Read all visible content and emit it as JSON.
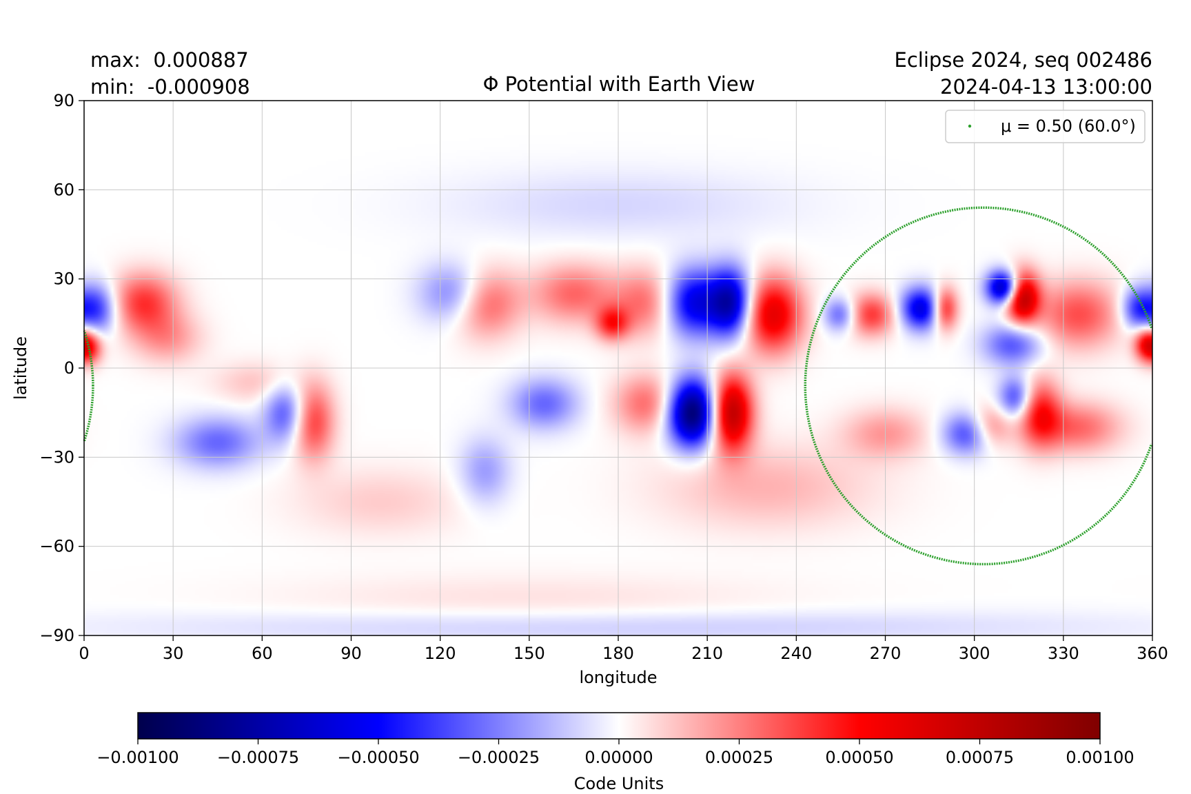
{
  "header": {
    "max_label": "max:  0.000887",
    "min_label": "min:  -0.000908",
    "run_label": "Eclipse 2024, seq 002486",
    "time_label": "2024-04-13 13:00:00"
  },
  "colors": {
    "grid": "#c8c8c8",
    "view_circle": "#2ca02c",
    "cmap_low": "#00004c",
    "cmap_mid_neg": "#0000ff",
    "cmap_zero": "#ffffff",
    "cmap_mid_pos": "#ff0000",
    "cmap_high": "#800000"
  },
  "chart_data": {
    "type": "heatmap",
    "title": "Φ Potential with Earth View",
    "xlabel": "longitude",
    "ylabel": "latitude",
    "xlim": [
      0,
      360
    ],
    "ylim": [
      -90,
      90
    ],
    "xticks": [
      0,
      30,
      60,
      90,
      120,
      150,
      180,
      210,
      240,
      270,
      300,
      330,
      360
    ],
    "yticks": [
      90,
      60,
      30,
      0,
      -30,
      -60,
      -90
    ],
    "xtick_labels": [
      "0",
      "30",
      "60",
      "90",
      "120",
      "150",
      "180",
      "210",
      "240",
      "270",
      "300",
      "330",
      "360"
    ],
    "ytick_labels": [
      "90",
      "60",
      "30",
      "0",
      "−30",
      "−60",
      "−90"
    ],
    "grid": true,
    "colorbar": {
      "label": "Code Units",
      "vmin": -0.001,
      "vmax": 0.001,
      "ticks": [
        -0.001,
        -0.00075,
        -0.0005,
        -0.00025,
        0,
        0.00025,
        0.0005,
        0.00075,
        0.001
      ],
      "tick_labels": [
        "−0.00100",
        "−0.00075",
        "−0.00050",
        "−0.00025",
        "0.00000",
        "0.00025",
        "0.00050",
        "0.00075",
        "0.00100"
      ],
      "cmap": "seismic"
    },
    "legend": {
      "placement": "top-right",
      "entry": "μ = 0.50 (60.0°)"
    },
    "view_circle": {
      "center_lon": 303,
      "center_lat": -11,
      "radius_lon": 60,
      "lat_top": 54,
      "lat_bottom": -66
    },
    "features": [
      {
        "lon": 4,
        "lat": 20,
        "value": -0.00045,
        "sx": 5,
        "sy": 6
      },
      {
        "lon": 20,
        "lat": 22,
        "value": 0.0004,
        "sx": 8,
        "sy": 7
      },
      {
        "lon": 2,
        "lat": 7,
        "value": 0.0004,
        "sx": 3,
        "sy": 4
      },
      {
        "lon": 28,
        "lat": 10,
        "value": 0.0002,
        "sx": 8,
        "sy": 6
      },
      {
        "lon": 45,
        "lat": -25,
        "value": -0.0003,
        "sx": 10,
        "sy": 6
      },
      {
        "lon": 68,
        "lat": -15,
        "value": -0.00035,
        "sx": 5,
        "sy": 7
      },
      {
        "lon": 77,
        "lat": -18,
        "value": 0.0004,
        "sx": 5,
        "sy": 9
      },
      {
        "lon": 58,
        "lat": -5,
        "value": 0.00012,
        "sx": 10,
        "sy": 5
      },
      {
        "lon": 125,
        "lat": 25,
        "value": -0.0003,
        "sx": 8,
        "sy": 7
      },
      {
        "lon": 135,
        "lat": 22,
        "value": 0.00035,
        "sx": 8,
        "sy": 8
      },
      {
        "lon": 165,
        "lat": 25,
        "value": 0.0003,
        "sx": 10,
        "sy": 7
      },
      {
        "lon": 178,
        "lat": 15,
        "value": 0.0004,
        "sx": 4,
        "sy": 4
      },
      {
        "lon": 155,
        "lat": -12,
        "value": -0.0003,
        "sx": 8,
        "sy": 6
      },
      {
        "lon": 135,
        "lat": -35,
        "value": -0.0002,
        "sx": 6,
        "sy": 8
      },
      {
        "lon": 190,
        "lat": 22,
        "value": 0.0003,
        "sx": 8,
        "sy": 8
      },
      {
        "lon": 205,
        "lat": 22,
        "value": -0.0006,
        "sx": 7,
        "sy": 8
      },
      {
        "lon": 218,
        "lat": 22,
        "value": -0.0007,
        "sx": 5,
        "sy": 8
      },
      {
        "lon": 232,
        "lat": 18,
        "value": 0.0006,
        "sx": 7,
        "sy": 9
      },
      {
        "lon": 205,
        "lat": -15,
        "value": -0.00095,
        "sx": 6,
        "sy": 8
      },
      {
        "lon": 218,
        "lat": -15,
        "value": 0.0008,
        "sx": 5,
        "sy": 9
      },
      {
        "lon": 190,
        "lat": -12,
        "value": 0.0003,
        "sx": 8,
        "sy": 7
      },
      {
        "lon": 230,
        "lat": -40,
        "value": 0.00015,
        "sx": 25,
        "sy": 10
      },
      {
        "lon": 255,
        "lat": 18,
        "value": -0.00035,
        "sx": 4,
        "sy": 4
      },
      {
        "lon": 265,
        "lat": 18,
        "value": 0.0004,
        "sx": 6,
        "sy": 5
      },
      {
        "lon": 282,
        "lat": 20,
        "value": -0.0006,
        "sx": 5,
        "sy": 5
      },
      {
        "lon": 290,
        "lat": 20,
        "value": 0.0005,
        "sx": 3,
        "sy": 5
      },
      {
        "lon": 310,
        "lat": 27,
        "value": -0.0008,
        "sx": 4,
        "sy": 4
      },
      {
        "lon": 316,
        "lat": 24,
        "value": 0.0008,
        "sx": 4,
        "sy": 6
      },
      {
        "lon": 313,
        "lat": 8,
        "value": -0.00035,
        "sx": 7,
        "sy": 5
      },
      {
        "lon": 335,
        "lat": 18,
        "value": 0.00035,
        "sx": 10,
        "sy": 8
      },
      {
        "lon": 355,
        "lat": 20,
        "value": -0.0004,
        "sx": 4,
        "sy": 5
      },
      {
        "lon": 358,
        "lat": 8,
        "value": 0.0005,
        "sx": 3,
        "sy": 4
      },
      {
        "lon": 298,
        "lat": -22,
        "value": -0.0004,
        "sx": 6,
        "sy": 5
      },
      {
        "lon": 305,
        "lat": -20,
        "value": 0.0003,
        "sx": 5,
        "sy": 5
      },
      {
        "lon": 314,
        "lat": -10,
        "value": -0.0004,
        "sx": 4,
        "sy": 5
      },
      {
        "lon": 322,
        "lat": -15,
        "value": 0.00045,
        "sx": 5,
        "sy": 8
      },
      {
        "lon": 335,
        "lat": -20,
        "value": 0.0003,
        "sx": 10,
        "sy": 6
      },
      {
        "lon": 270,
        "lat": -22,
        "value": 0.0002,
        "sx": 10,
        "sy": 6
      },
      {
        "lon": 180,
        "lat": 55,
        "value": -8e-05,
        "sx": 40,
        "sy": 8
      },
      {
        "lon": 100,
        "lat": -45,
        "value": 0.0001,
        "sx": 20,
        "sy": 8
      },
      {
        "lon": 150,
        "lat": -78,
        "value": 6e-05,
        "sx": 60,
        "sy": 6
      },
      {
        "lon": 180,
        "lat": -87,
        "value": -0.0001,
        "sx": 120,
        "sy": 4
      }
    ]
  }
}
